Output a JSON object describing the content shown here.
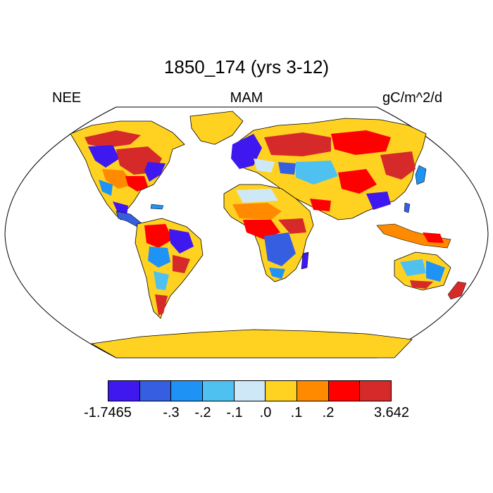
{
  "title": "1850_174 (yrs 3-12)",
  "left_label": "NEE",
  "center_label": "MAM",
  "right_label": "gC/m^2/d",
  "colorbar": {
    "colors": [
      "#3f17ef",
      "#355fe0",
      "#1e93f5",
      "#4fc1f0",
      "#cfe8f7",
      "#ffd221",
      "#ff8a00",
      "#ff0000",
      "#d62a2a"
    ],
    "tick_labels": [
      "-1.7465",
      "-.3",
      "-.2",
      "-.1",
      ".0",
      ".1",
      ".2",
      "3.642"
    ]
  },
  "map": {
    "projection": "Robinson",
    "ocean_color": "#ffffff",
    "land_outline_color": "#000000"
  }
}
